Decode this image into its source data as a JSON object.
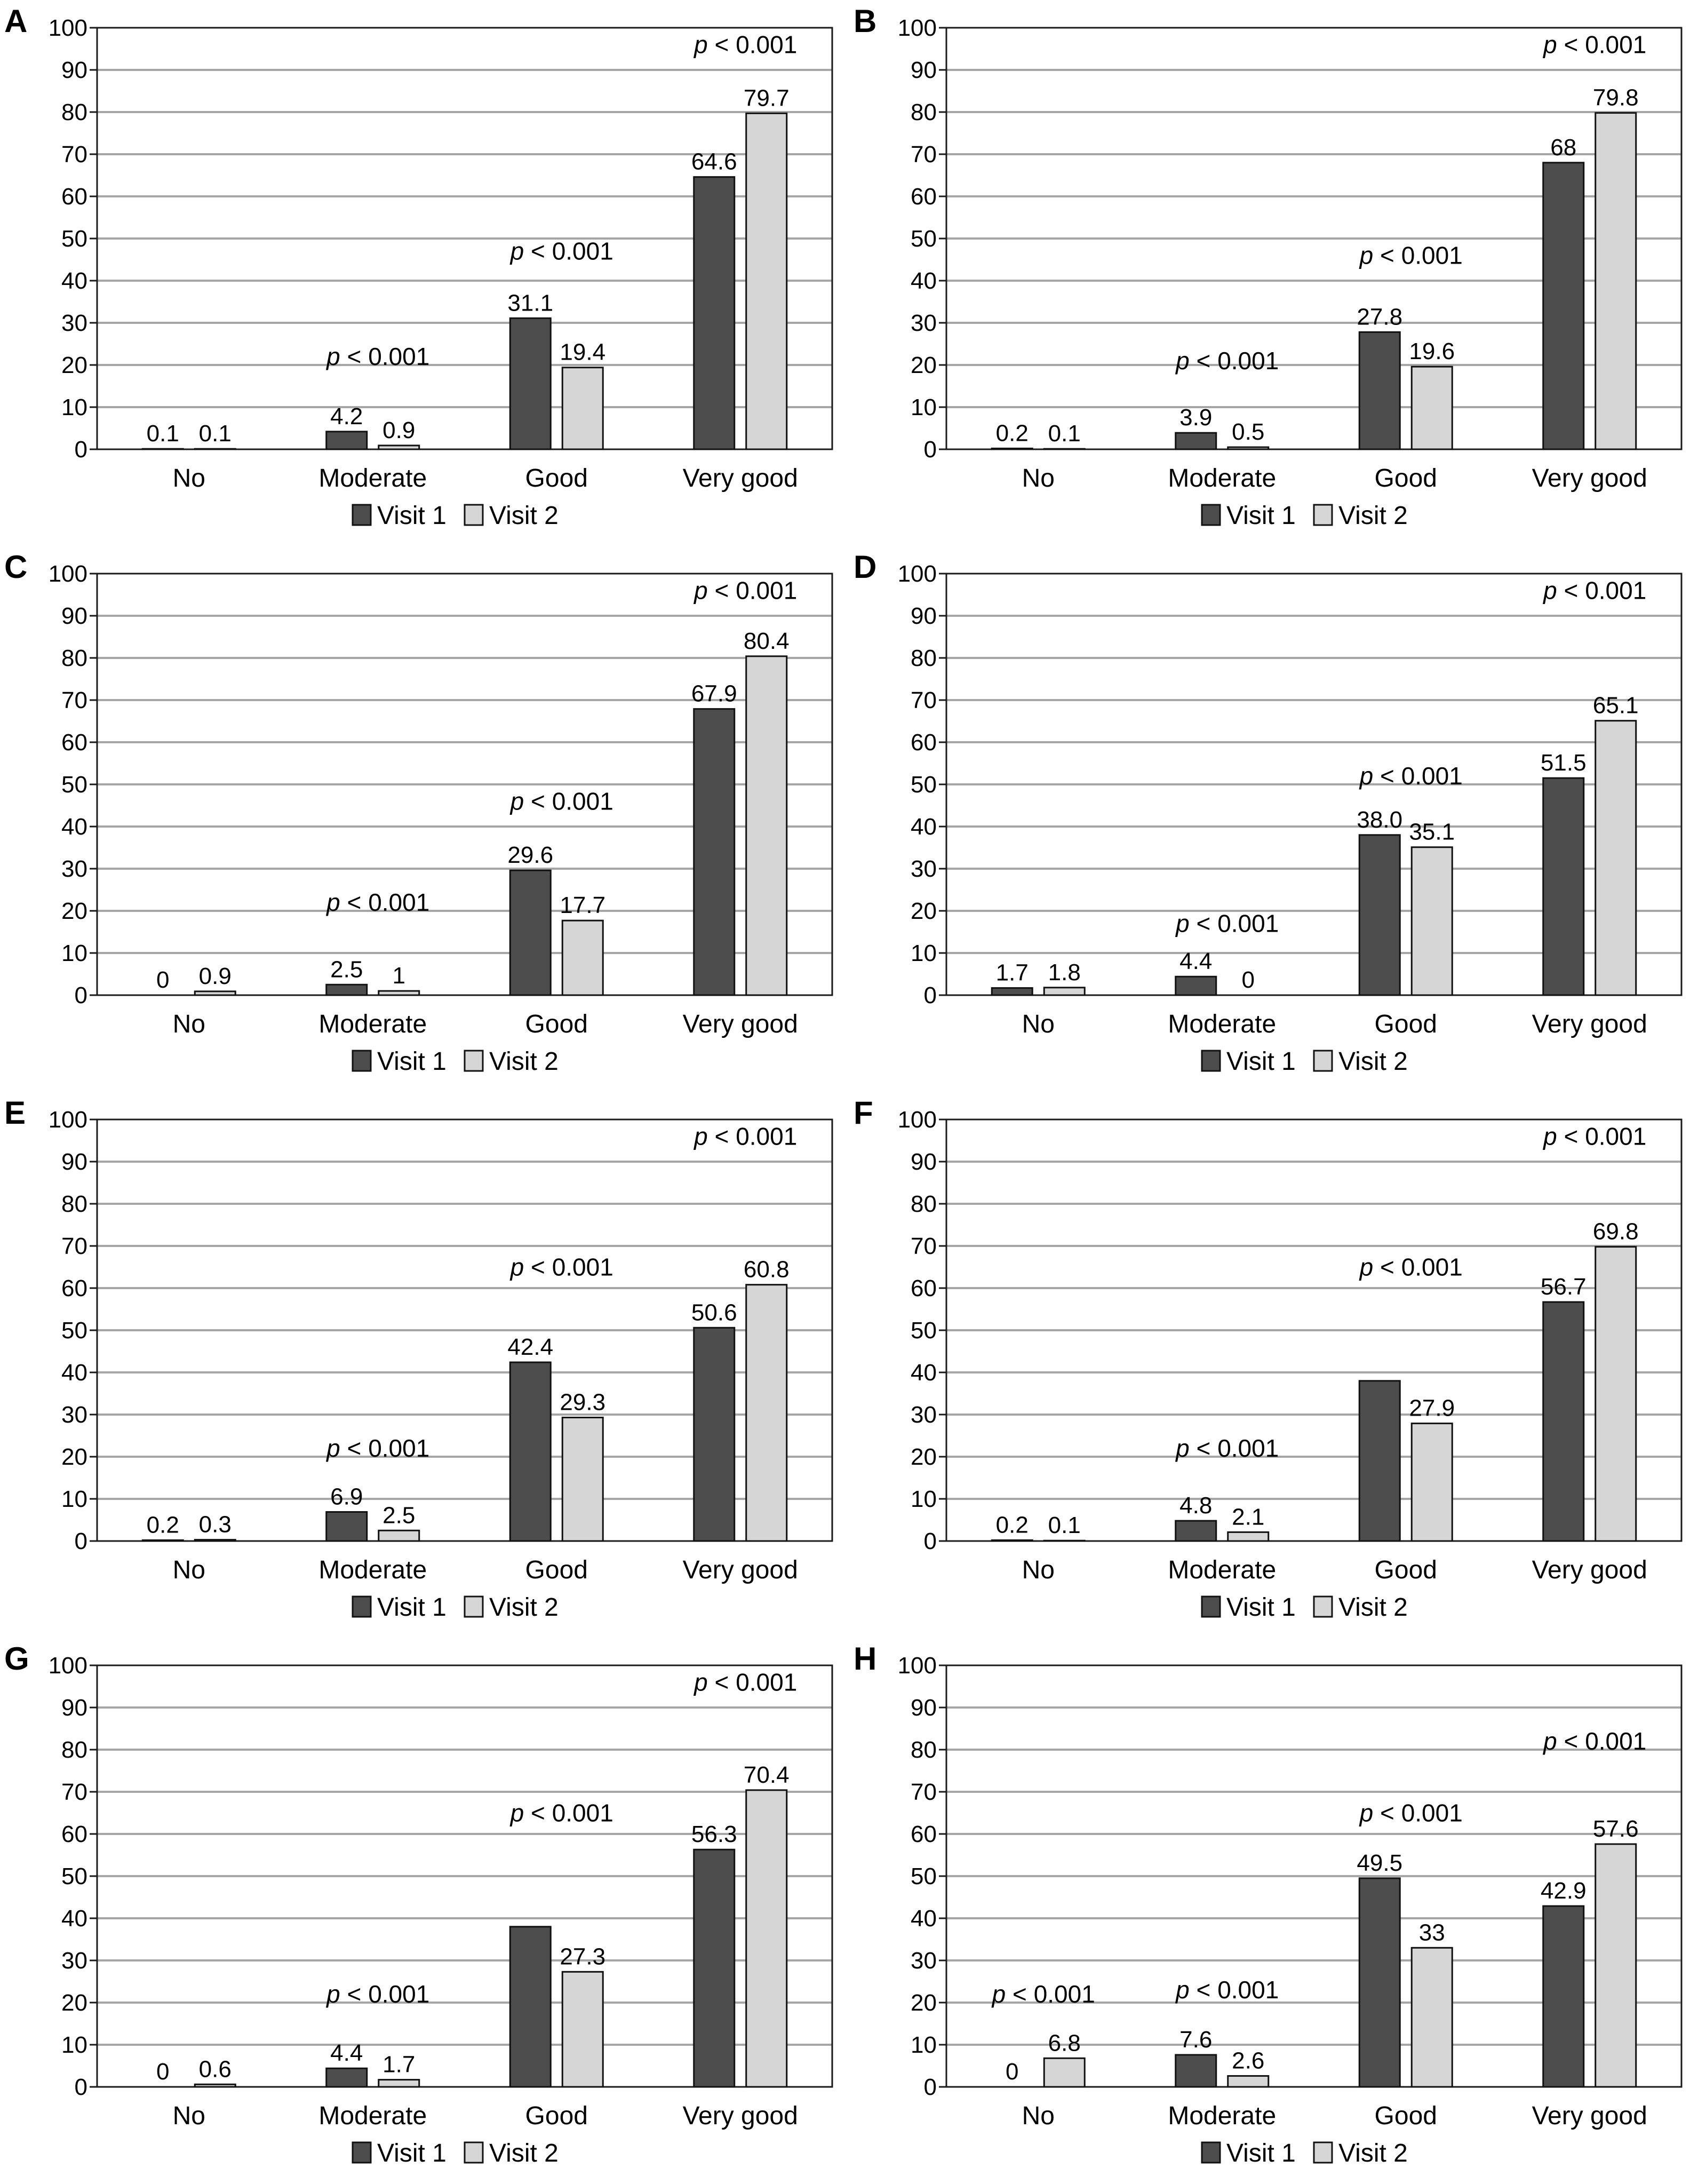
{
  "figure": {
    "legend": [
      "Visit 1",
      "Visit 2"
    ],
    "colors": {
      "visit1": "#4d4d4d",
      "visit2": "#d6d6d6",
      "grid": "#a6a6a6",
      "axis": "#1a1a1a"
    }
  },
  "chart_data": [
    {
      "panel": "A",
      "type": "bar",
      "categories": [
        "No",
        "Moderate",
        "Good",
        "Very good"
      ],
      "ylim": [
        0,
        100
      ],
      "yticks": [
        0,
        10,
        20,
        30,
        40,
        50,
        60,
        70,
        80,
        90,
        100
      ],
      "grid": true,
      "legend_position": "bottom",
      "series": [
        {
          "name": "Visit 1",
          "values": [
            0.1,
            4.2,
            31.1,
            64.6
          ]
        },
        {
          "name": "Visit 2",
          "values": [
            0.1,
            0.9,
            19.4,
            79.7
          ]
        }
      ],
      "annotations": [
        {
          "category": "Moderate",
          "text": "p < 0.001",
          "y": 20
        },
        {
          "category": "Good",
          "text": "p < 0.001",
          "y": 45
        },
        {
          "category": "Very good",
          "text": "p < 0.001",
          "y": 94
        }
      ]
    },
    {
      "panel": "B",
      "type": "bar",
      "categories": [
        "No",
        "Moderate",
        "Good",
        "Very good"
      ],
      "ylim": [
        0,
        100
      ],
      "yticks": [
        0,
        10,
        20,
        30,
        40,
        50,
        60,
        70,
        80,
        90,
        100
      ],
      "grid": true,
      "legend_position": "bottom",
      "series": [
        {
          "name": "Visit 1",
          "values": [
            0.2,
            3.9,
            27.8,
            68
          ]
        },
        {
          "name": "Visit 2",
          "values": [
            0.1,
            0.5,
            19.6,
            79.8
          ]
        }
      ],
      "annotations": [
        {
          "category": "Moderate",
          "text": "p < 0.001",
          "y": 19
        },
        {
          "category": "Good",
          "text": "p < 0.001",
          "y": 44
        },
        {
          "category": "Very good",
          "text": "p < 0.001",
          "y": 94
        }
      ]
    },
    {
      "panel": "C",
      "type": "bar",
      "categories": [
        "No",
        "Moderate",
        "Good",
        "Very good"
      ],
      "ylim": [
        0,
        100
      ],
      "yticks": [
        0,
        10,
        20,
        30,
        40,
        50,
        60,
        70,
        80,
        90,
        100
      ],
      "grid": true,
      "legend_position": "bottom",
      "series": [
        {
          "name": "Visit 1",
          "values": [
            0,
            2.5,
            29.6,
            67.9
          ]
        },
        {
          "name": "Visit 2",
          "values": [
            0.9,
            1,
            17.7,
            80.4
          ]
        }
      ],
      "annotations": [
        {
          "category": "Moderate",
          "text": "p < 0.001",
          "y": 20
        },
        {
          "category": "Good",
          "text": "p < 0.001",
          "y": 44
        },
        {
          "category": "Very good",
          "text": "p < 0.001",
          "y": 94
        }
      ]
    },
    {
      "panel": "D",
      "type": "bar",
      "categories": [
        "No",
        "Moderate",
        "Good",
        "Very good"
      ],
      "ylim": [
        0,
        100
      ],
      "yticks": [
        0,
        10,
        20,
        30,
        40,
        50,
        60,
        70,
        80,
        90,
        100
      ],
      "grid": true,
      "legend_position": "bottom",
      "series": [
        {
          "name": "Visit 1",
          "values": [
            1.7,
            4.4,
            38.0,
            51.5
          ]
        },
        {
          "name": "Visit 2",
          "values": [
            1.8,
            0,
            35.1,
            65.1
          ]
        }
      ],
      "value_labels": [
        [
          "1.7",
          "4.4",
          "38.0",
          "51.5"
        ],
        [
          "1.8",
          "0",
          "35.1",
          "65.1"
        ]
      ],
      "annotations": [
        {
          "category": "Moderate",
          "text": "p < 0.001",
          "y": 15
        },
        {
          "category": "Good",
          "text": "p < 0.001",
          "y": 50
        },
        {
          "category": "Very good",
          "text": "p < 0.001",
          "y": 94
        }
      ]
    },
    {
      "panel": "E",
      "type": "bar",
      "categories": [
        "No",
        "Moderate",
        "Good",
        "Very good"
      ],
      "ylim": [
        0,
        100
      ],
      "yticks": [
        0,
        10,
        20,
        30,
        40,
        50,
        60,
        70,
        80,
        90,
        100
      ],
      "grid": true,
      "legend_position": "bottom",
      "series": [
        {
          "name": "Visit 1",
          "values": [
            0.2,
            6.9,
            42.4,
            50.6
          ]
        },
        {
          "name": "Visit 2",
          "values": [
            0.3,
            2.5,
            29.3,
            60.8
          ]
        }
      ],
      "annotations": [
        {
          "category": "Moderate",
          "text": "p < 0.001",
          "y": 20
        },
        {
          "category": "Good",
          "text": "p < 0.001",
          "y": 63
        },
        {
          "category": "Very good",
          "text": "p < 0.001",
          "y": 94
        }
      ]
    },
    {
      "panel": "F",
      "type": "bar",
      "categories": [
        "No",
        "Moderate",
        "Good",
        "Very good"
      ],
      "ylim": [
        0,
        100
      ],
      "yticks": [
        0,
        10,
        20,
        30,
        40,
        50,
        60,
        70,
        80,
        90,
        100
      ],
      "grid": true,
      "legend_position": "bottom",
      "series": [
        {
          "name": "Visit 1",
          "values": [
            0.2,
            4.8,
            38.0,
            56.7
          ]
        },
        {
          "name": "Visit 2",
          "values": [
            0.1,
            2.1,
            27.9,
            69.8
          ]
        }
      ],
      "value_labels": [
        [
          "0.2",
          "4.8",
          "",
          "56.7"
        ],
        [
          "0.1",
          "2.1",
          "27.9",
          "69.8"
        ]
      ],
      "annotations": [
        {
          "category": "Moderate",
          "text": "p < 0.001",
          "y": 20
        },
        {
          "category": "Good",
          "text": "p < 0.001",
          "y": 63
        },
        {
          "category": "Very good",
          "text": "p < 0.001",
          "y": 94
        }
      ]
    },
    {
      "panel": "G",
      "type": "bar",
      "categories": [
        "No",
        "Moderate",
        "Good",
        "Very good"
      ],
      "ylim": [
        0,
        100
      ],
      "yticks": [
        0,
        10,
        20,
        30,
        40,
        50,
        60,
        70,
        80,
        90,
        100
      ],
      "grid": true,
      "legend_position": "bottom",
      "series": [
        {
          "name": "Visit 1",
          "values": [
            0,
            4.4,
            38.0,
            56.3
          ]
        },
        {
          "name": "Visit 2",
          "values": [
            0.6,
            1.7,
            27.3,
            70.4
          ]
        }
      ],
      "value_labels": [
        [
          "0",
          "4.4",
          "",
          "56.3"
        ],
        [
          "0.6",
          "1.7",
          "27.3",
          "70.4"
        ]
      ],
      "annotations": [
        {
          "category": "Moderate",
          "text": "p < 0.001",
          "y": 20
        },
        {
          "category": "Good",
          "text": "p < 0.001",
          "y": 63
        },
        {
          "category": "Very good",
          "text": "p < 0.001",
          "y": 94
        }
      ]
    },
    {
      "panel": "H",
      "type": "bar",
      "categories": [
        "No",
        "Moderate",
        "Good",
        "Very good"
      ],
      "ylim": [
        0,
        100
      ],
      "yticks": [
        0,
        10,
        20,
        30,
        40,
        50,
        60,
        70,
        80,
        90,
        100
      ],
      "grid": true,
      "legend_position": "bottom",
      "series": [
        {
          "name": "Visit 1",
          "values": [
            0,
            7.6,
            49.5,
            42.9
          ]
        },
        {
          "name": "Visit 2",
          "values": [
            6.8,
            2.6,
            33,
            57.6
          ]
        }
      ],
      "annotations": [
        {
          "category": "No",
          "text": "p < 0.001",
          "y": 20
        },
        {
          "category": "Moderate",
          "text": "p < 0.001",
          "y": 21
        },
        {
          "category": "Good",
          "text": "p < 0.001",
          "y": 63
        },
        {
          "category": "Very good",
          "text": "p < 0.001",
          "y": 80
        }
      ]
    }
  ]
}
